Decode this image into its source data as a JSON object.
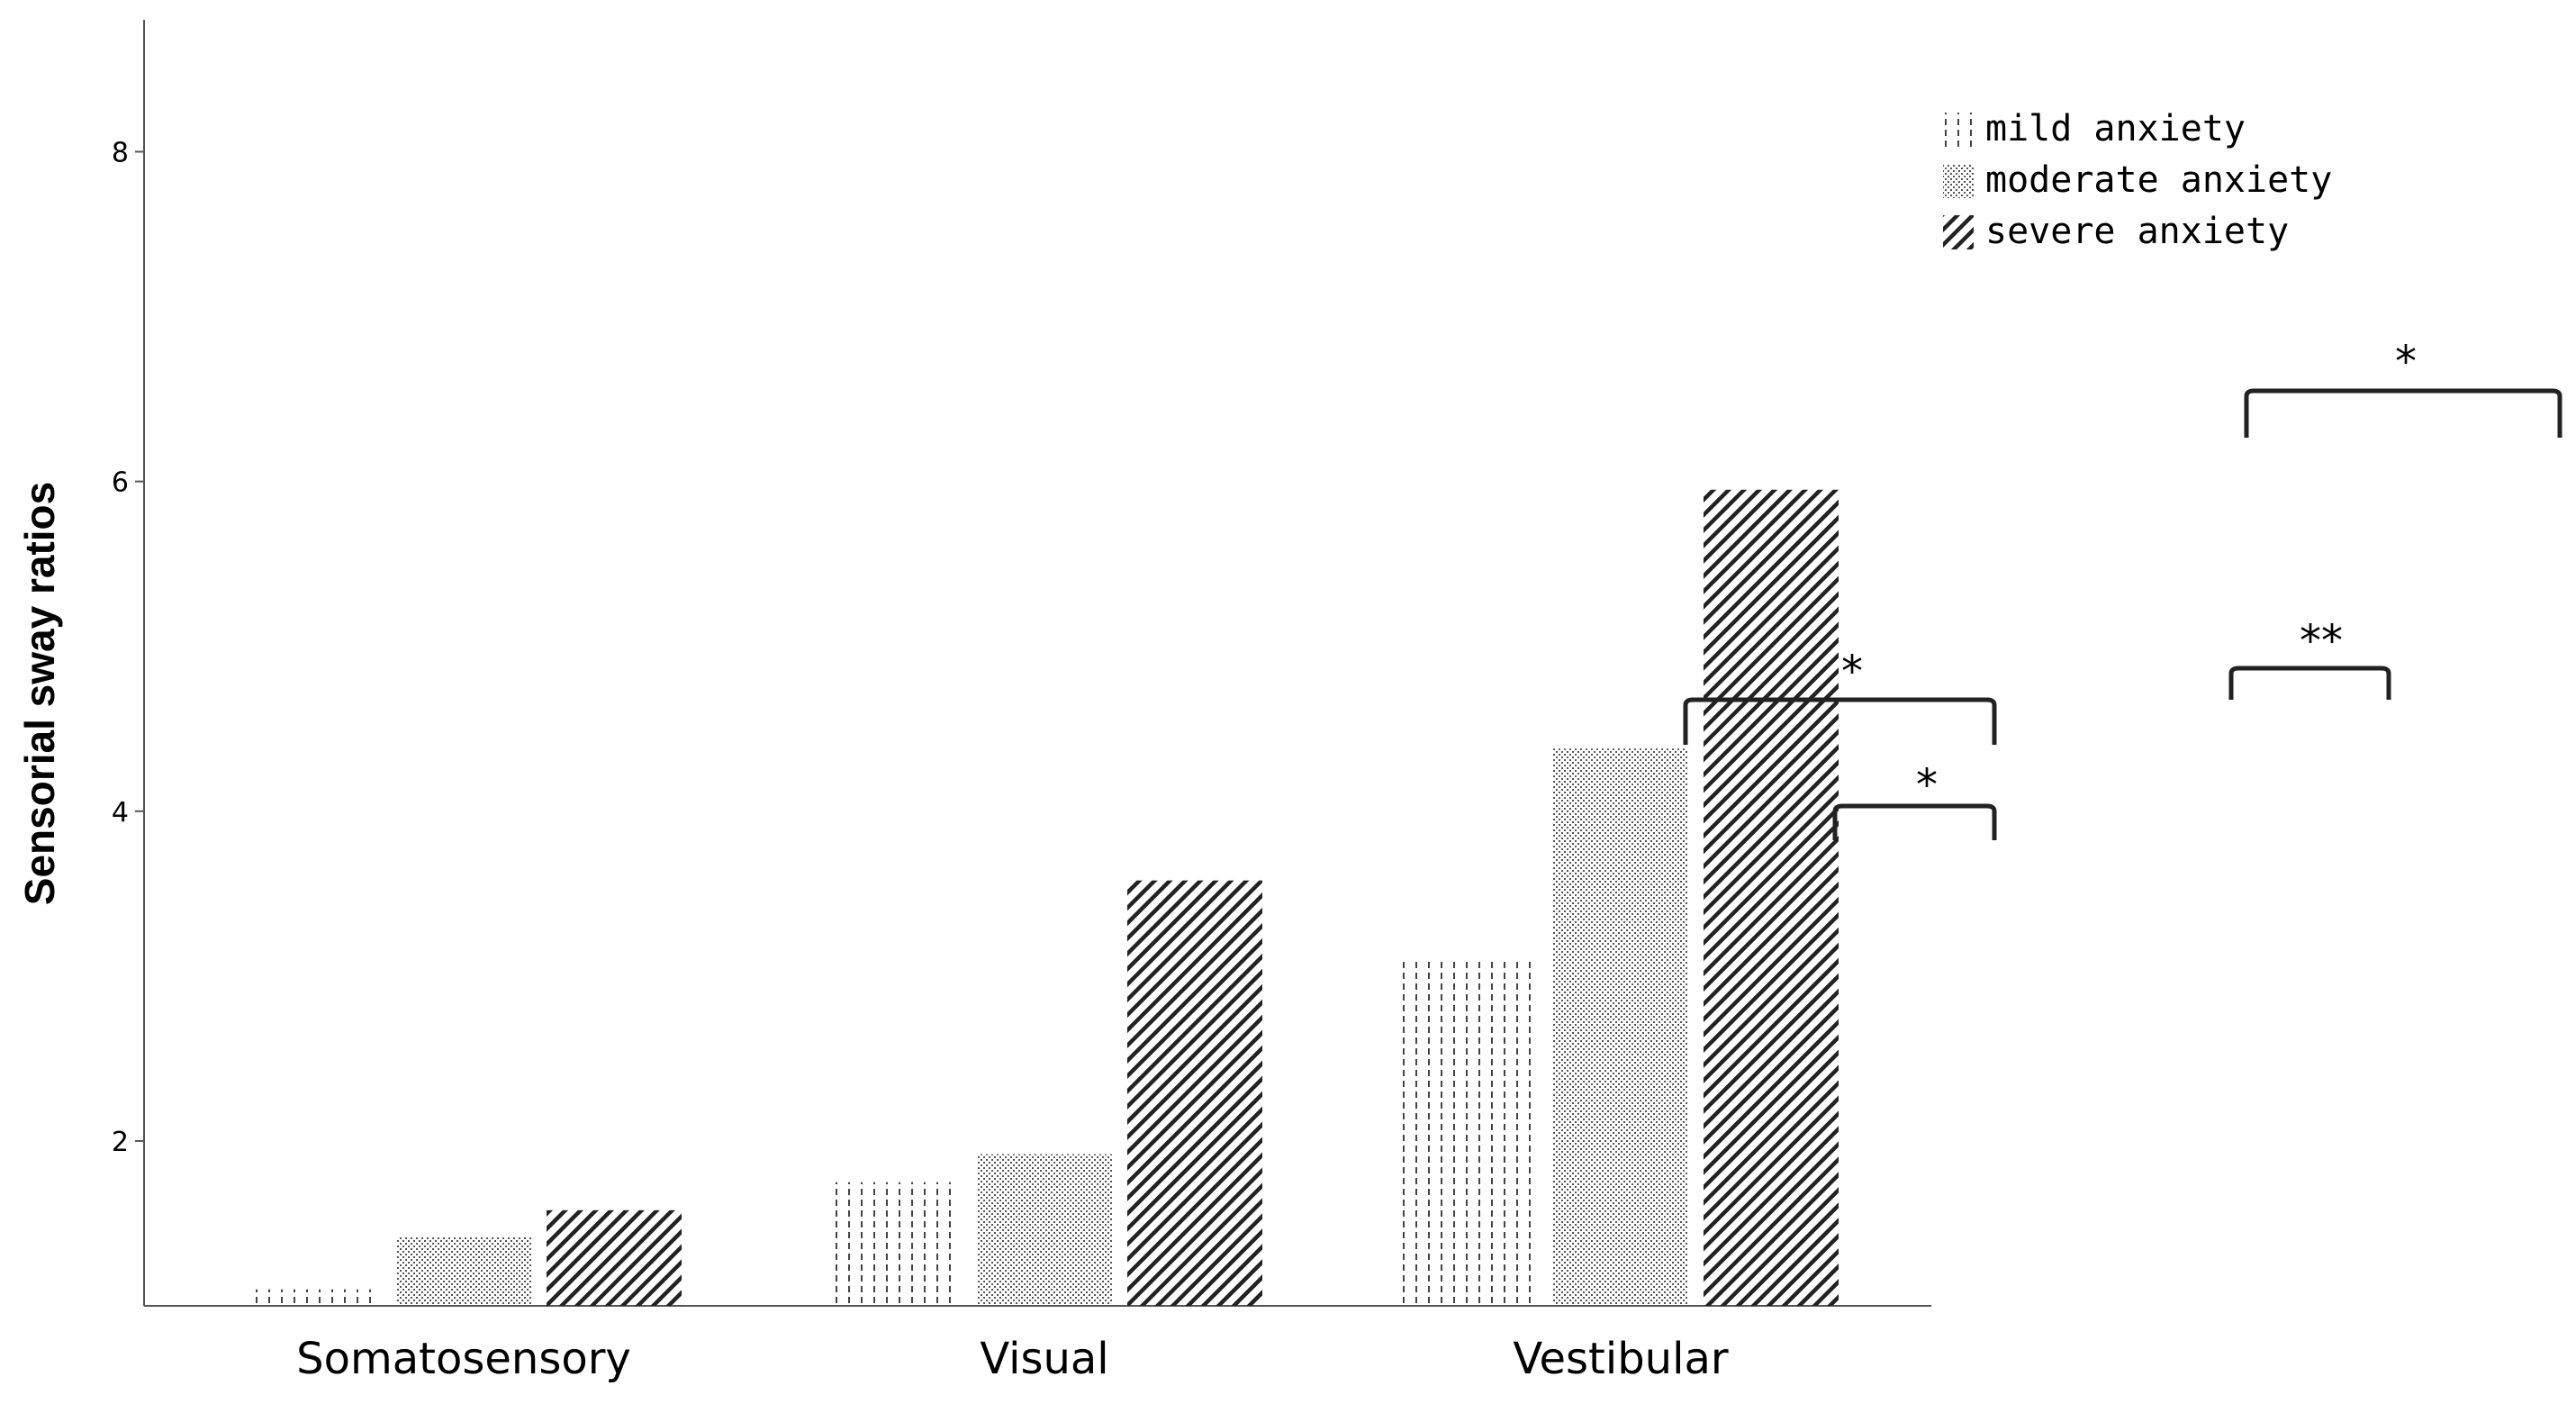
{
  "chart_data": {
    "type": "bar",
    "title": "",
    "xlabel": "",
    "ylabel": "Sensorial sway ratios",
    "categories": [
      "Somatosensory",
      "Visual",
      "Vestibular"
    ],
    "ylim": [
      1,
      8.8
    ],
    "yticks": [
      2,
      4,
      6,
      8
    ],
    "grid": false,
    "legend_position": "top-right",
    "series": [
      {
        "name": "mild anxiety",
        "pattern": "dotted-vertical",
        "values": [
          1.1,
          1.75,
          3.1
        ]
      },
      {
        "name": "moderate anxiety",
        "pattern": "fine-dots",
        "values": [
          1.42,
          1.92,
          4.38
        ]
      },
      {
        "name": "severe anxiety",
        "pattern": "diagonal-hatch",
        "values": [
          1.58,
          3.58,
          5.95
        ]
      }
    ],
    "annotations": [
      "*",
      "*",
      "**",
      "*"
    ],
    "colors": {
      "axis": "#555555",
      "mark": "#222222"
    }
  }
}
